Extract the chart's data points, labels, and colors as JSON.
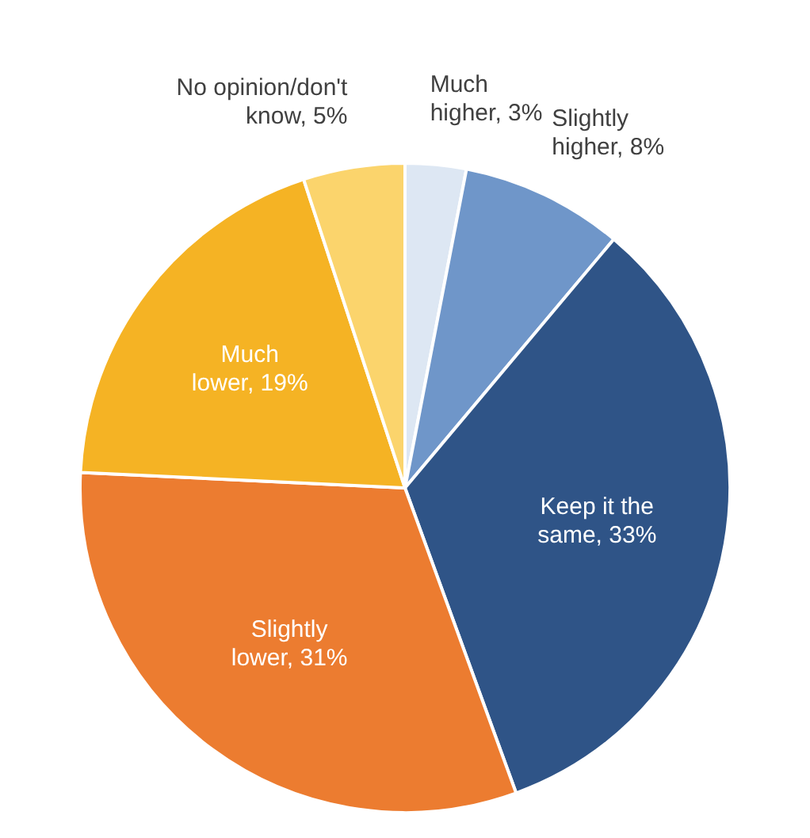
{
  "chart_data": {
    "type": "pie",
    "categories": [
      "Much higher",
      "Slightly higher",
      "Keep it the same",
      "Slightly lower",
      "Much lower",
      "No opinion/don't know"
    ],
    "values": [
      3,
      8,
      33,
      31,
      19,
      5
    ],
    "value_labels": [
      "3%",
      "8%",
      "33%",
      "31%",
      "19%",
      "5%"
    ],
    "colors": [
      "#dde7f3",
      "#6f96c9",
      "#2f5487",
      "#ec7c30",
      "#f5b324",
      "#fbd46c"
    ]
  }
}
